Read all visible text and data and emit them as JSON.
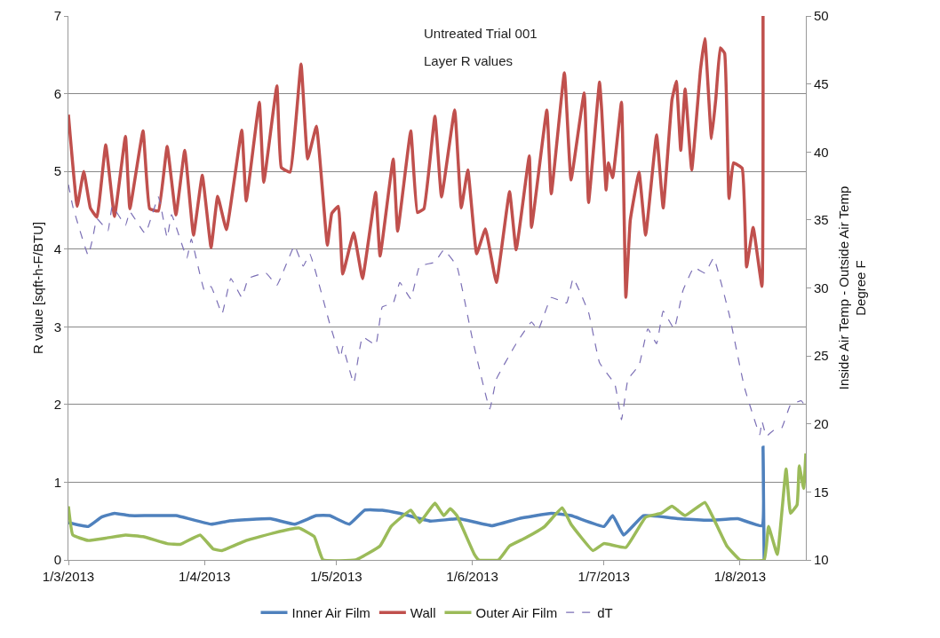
{
  "chart_data": {
    "type": "line",
    "title": "Untreated Trial 001",
    "subtitle": "Layer R values",
    "ylabel": "R value [sqft-h-F/BTU]",
    "y2label": "Inside Air Temp - Outside Air Temp\nDegree F",
    "xlim": [
      "2013-03-01",
      "2013-08-16"
    ],
    "xticks": [
      {
        "value": "2013-03-01",
        "label": "1/3/2013"
      },
      {
        "value": "2013-04-01",
        "label": "1/4/2013"
      },
      {
        "value": "2013-05-01",
        "label": "1/5/2013"
      },
      {
        "value": "2013-06-01",
        "label": "1/6/2013"
      },
      {
        "value": "2013-07-01",
        "label": "1/7/2013"
      },
      {
        "value": "2013-08-01",
        "label": "1/8/2013"
      }
    ],
    "ylim": [
      0,
      7
    ],
    "yticks": [
      0,
      1,
      2,
      3,
      4,
      5,
      6,
      7
    ],
    "y2lim": [
      10,
      50
    ],
    "y2ticks": [
      10,
      15,
      20,
      25,
      30,
      35,
      40,
      45,
      50
    ],
    "grid": "y",
    "legend": "bottom",
    "marker": "none",
    "series": [
      {
        "name": "Inner Air Film",
        "color": "#4f81bd",
        "x": [
          "2013-03-01T00:00",
          "2013-03-05T12:00",
          "2013-03-08T12:00",
          "2013-03-11T12:00",
          "2013-03-15T00:00",
          "2013-03-19T00:00",
          "2013-03-25T12:00",
          "2013-04-02T12:00",
          "2013-04-06T12:00",
          "2013-04-16T00:00",
          "2013-04-21T12:00",
          "2013-04-26T12:00",
          "2013-04-29T12:00",
          "2013-05-04T00:00",
          "2013-05-07T12:00",
          "2013-05-11T12:00",
          "2013-05-15T12:00",
          "2013-05-22T12:00",
          "2013-05-29T00:00",
          "2013-06-05T12:00",
          "2013-06-11T12:00",
          "2013-06-19T00:00",
          "2013-06-23T12:00",
          "2013-07-01T00:00",
          "2013-07-03T00:00",
          "2013-07-05T12:00",
          "2013-07-10T00:00",
          "2013-07-18T00:00",
          "2013-07-25T00:00",
          "2013-07-31T12:00",
          "2013-08-06T00:00",
          "2013-08-06T06:00",
          "2013-08-06T12:00"
        ],
        "values": [
          0.48,
          0.43,
          0.55,
          0.6,
          0.57,
          0.57,
          0.57,
          0.46,
          0.5,
          0.53,
          0.46,
          0.57,
          0.57,
          0.46,
          0.64,
          0.64,
          0.6,
          0.5,
          0.53,
          0.44,
          0.53,
          0.6,
          0.57,
          0.43,
          0.57,
          0.32,
          0.57,
          0.53,
          0.51,
          0.53,
          0.44,
          1.45,
          0.0
        ]
      },
      {
        "name": "Wall",
        "color": "#c0504d",
        "x": [
          "2013-03-01T00:00",
          "2013-03-03T00:00",
          "2013-03-04T12:00",
          "2013-03-06T00:00",
          "2013-03-07T12:00",
          "2013-03-09T12:00",
          "2013-03-11T12:00",
          "2013-03-14T00:00",
          "2013-03-15T00:00",
          "2013-03-18T00:00",
          "2013-03-19T12:00",
          "2013-03-21T12:00",
          "2013-03-23T12:00",
          "2013-03-25T12:00",
          "2013-03-27T12:00",
          "2013-03-29T12:00",
          "2013-03-31T12:00",
          "2013-04-02T12:00",
          "2013-04-04T00:00",
          "2013-04-06T00:00",
          "2013-04-09T12:00",
          "2013-04-10T12:00",
          "2013-04-13T12:00",
          "2013-04-14T12:00",
          "2013-04-17T12:00",
          "2013-04-18T12:00",
          "2013-04-20T12:00",
          "2013-04-23T00:00",
          "2013-04-24T12:00",
          "2013-04-26T12:00",
          "2013-04-29T00:00",
          "2013-04-30T00:00",
          "2013-05-01T12:00",
          "2013-05-02T12:00",
          "2013-05-05T00:00",
          "2013-05-07T00:00",
          "2013-05-10T00:00",
          "2013-05-11T00:00",
          "2013-05-14T00:00",
          "2013-05-15T00:00",
          "2013-05-18T00:00",
          "2013-05-19T12:00",
          "2013-05-21T00:00",
          "2013-05-23T12:00",
          "2013-05-25T00:00",
          "2013-05-28T00:00",
          "2013-05-29T12:00",
          "2013-05-31T00:00",
          "2013-06-02T00:00",
          "2013-06-04T00:00",
          "2013-06-06T12:00",
          "2013-06-09T12:00",
          "2013-06-11T00:00",
          "2013-06-14T00:00",
          "2013-06-14T12:00",
          "2013-06-18T00:00",
          "2013-06-19T00:00",
          "2013-06-22T00:00",
          "2013-06-23T12:00",
          "2013-06-26T12:00",
          "2013-06-27T12:00",
          "2013-06-30T00:00",
          "2013-06-30T12:00",
          "2013-07-01T12:00",
          "2013-07-02T00:00",
          "2013-07-03T00:00",
          "2013-07-05T00:00",
          "2013-07-06T00:00",
          "2013-07-07T00:00",
          "2013-07-09T00:00",
          "2013-07-10T12:00",
          "2013-07-13T00:00",
          "2013-07-14T12:00",
          "2013-07-16T12:00",
          "2013-07-17T12:00",
          "2013-07-18T12:00",
          "2013-07-19T12:00",
          "2013-07-21T00:00",
          "2013-07-23T00:00",
          "2013-07-24T00:00",
          "2013-07-25T12:00",
          "2013-07-26T12:00",
          "2013-07-27T12:00",
          "2013-07-28T12:00",
          "2013-07-29T12:00",
          "2013-07-30T12:00",
          "2013-08-01T12:00",
          "2013-08-02T12:00",
          "2013-08-04T00:00",
          "2013-08-06T00:00",
          "2013-08-06T06:00"
        ],
        "values": [
          5.73,
          4.55,
          5.0,
          4.53,
          4.41,
          5.34,
          4.42,
          5.45,
          4.52,
          5.52,
          4.52,
          4.49,
          5.32,
          4.44,
          5.27,
          4.18,
          4.95,
          4.02,
          4.68,
          4.25,
          5.53,
          4.62,
          5.89,
          4.86,
          6.1,
          5.05,
          4.99,
          6.38,
          5.16,
          5.58,
          4.05,
          4.46,
          4.55,
          3.68,
          4.21,
          3.62,
          4.73,
          3.91,
          5.16,
          4.23,
          5.52,
          4.47,
          4.52,
          5.71,
          4.67,
          5.79,
          4.53,
          5.02,
          3.94,
          4.26,
          3.57,
          4.74,
          3.99,
          5.2,
          4.28,
          5.79,
          4.71,
          6.27,
          4.89,
          6.01,
          4.6,
          6.15,
          5.78,
          4.76,
          5.11,
          4.92,
          5.89,
          3.38,
          4.37,
          4.99,
          4.18,
          5.47,
          4.53,
          5.92,
          6.16,
          5.27,
          6.06,
          5.02,
          6.31,
          6.71,
          5.42,
          5.94,
          6.59,
          6.52,
          4.65,
          5.11,
          5.04,
          3.77,
          4.28,
          3.52,
          7
        ]
      },
      {
        "name": "Outer Air Film",
        "color": "#9bbb59",
        "x": [
          "2013-03-01T00:00",
          "2013-03-02T00:00",
          "2013-03-05T12:00",
          "2013-03-09T12:00",
          "2013-03-14T00:00",
          "2013-03-18T00:00",
          "2013-03-23T12:00",
          "2013-03-26T12:00",
          "2013-03-31T00:00",
          "2013-04-03T00:00",
          "2013-04-05T00:00",
          "2013-04-10T12:00",
          "2013-04-17T00:00",
          "2013-04-22T12:00",
          "2013-04-26T00:00",
          "2013-04-28T00:00",
          "2013-05-05T12:00",
          "2013-05-11T00:00",
          "2013-05-13T12:00",
          "2013-05-18T00:00",
          "2013-05-20T00:00",
          "2013-05-23T12:00",
          "2013-05-25T12:00",
          "2013-05-27T00:00",
          "2013-05-28T12:00",
          "2013-06-01T12:00",
          "2013-06-02T12:00",
          "2013-06-07T00:00",
          "2013-06-09T12:00",
          "2013-06-13T00:00",
          "2013-06-17T12:00",
          "2013-06-21T12:00",
          "2013-06-23T12:00",
          "2013-06-28T12:00",
          "2013-07-01T00:00",
          "2013-07-06T00:00",
          "2013-07-10T12:00",
          "2013-07-14T00:00",
          "2013-07-16T12:00",
          "2013-07-19T12:00",
          "2013-07-24T00:00",
          "2013-07-26T00:00",
          "2013-07-29T00:00",
          "2013-08-01T00:00",
          "2013-08-06T12:00",
          "2013-08-07T12:00",
          "2013-08-09T12:00",
          "2013-08-11T12:00",
          "2013-08-12T12:00",
          "2013-08-14T00:00",
          "2013-08-14T12:00",
          "2013-08-15T12:00",
          "2013-08-16T00:00"
        ],
        "values": [
          0.69,
          0.32,
          0.25,
          0.28,
          0.32,
          0.3,
          0.21,
          0.2,
          0.32,
          0.14,
          0.12,
          0.25,
          0.35,
          0.41,
          0.3,
          0.0,
          0.0,
          0.18,
          0.43,
          0.64,
          0.48,
          0.73,
          0.57,
          0.66,
          0.57,
          0.07,
          0.0,
          0.0,
          0.18,
          0.28,
          0.43,
          0.67,
          0.46,
          0.12,
          0.21,
          0.16,
          0.55,
          0.6,
          0.69,
          0.57,
          0.74,
          0.53,
          0.18,
          0.0,
          0.0,
          0.43,
          0.07,
          1.17,
          0.6,
          0.71,
          1.21,
          0.92,
          1.37
        ]
      },
      {
        "name": "dT",
        "color": "#7b6fb5",
        "axis": "y2",
        "line_style": "dashed",
        "x": [
          "2013-03-01T00:00",
          "2013-03-02T00:00",
          "2013-03-05T12:00",
          "2013-03-06T12:00",
          "2013-03-07T12:00",
          "2013-03-10T00:00",
          "2013-03-11T00:00",
          "2013-03-14T00:00",
          "2013-03-15T00:00",
          "2013-03-18T12:00",
          "2013-03-21T12:00",
          "2013-03-23T12:00",
          "2013-03-24T12:00",
          "2013-03-28T00:00",
          "2013-03-29T00:00",
          "2013-04-01T00:00",
          "2013-04-02T12:00",
          "2013-04-05T00:00",
          "2013-04-07T00:00",
          "2013-04-09T12:00",
          "2013-04-11T00:00",
          "2013-04-15T00:00",
          "2013-04-17T12:00",
          "2013-04-21T12:00",
          "2013-04-23T12:00",
          "2013-04-25T00:00",
          "2013-04-29T12:00",
          "2013-05-02T00:00",
          "2013-05-02T12:00",
          "2013-05-05T00:00",
          "2013-05-07T00:00",
          "2013-05-10T00:00",
          "2013-05-11T12:00",
          "2013-05-14T00:00",
          "2013-05-15T12:00",
          "2013-05-18T00:00",
          "2013-05-20T00:00",
          "2013-05-23T12:00",
          "2013-05-25T12:00",
          "2013-05-28T12:00",
          "2013-06-01T00:00",
          "2013-06-05T00:00",
          "2013-06-06T12:00",
          "2013-06-11T00:00",
          "2013-06-14T12:00",
          "2013-06-16T00:00",
          "2013-06-19T00:00",
          "2013-06-22T12:00",
          "2013-06-24T00:00",
          "2013-06-27T12:00",
          "2013-06-30T00:00",
          "2013-07-03T12:00",
          "2013-07-05T00:00",
          "2013-07-06T12:00",
          "2013-07-09T00:00",
          "2013-07-11T00:00",
          "2013-07-13T00:00",
          "2013-07-14T12:00",
          "2013-07-17T00:00",
          "2013-07-19T00:00",
          "2013-07-21T12:00",
          "2013-07-24T00:00",
          "2013-07-26T00:00",
          "2013-07-29T12:00",
          "2013-08-02T00:00",
          "2013-08-05T12:00",
          "2013-08-06T00:00",
          "2013-08-07T00:00",
          "2013-08-08T12:00",
          "2013-08-10T12:00",
          "2013-08-12T12:00",
          "2013-08-15T00:00",
          "2013-08-16T00:00"
        ],
        "values": [
          37.6,
          36.0,
          32.4,
          33.6,
          35.1,
          34.2,
          36.0,
          34.6,
          35.6,
          34.0,
          36.7,
          33.7,
          35.4,
          32.2,
          33.6,
          29.8,
          30.1,
          28.1,
          30.7,
          29.3,
          30.7,
          31.1,
          30.2,
          33.1,
          31.6,
          32.5,
          27.4,
          24.9,
          25.7,
          23.0,
          26.4,
          25.8,
          28.6,
          28.9,
          30.4,
          29.2,
          31.6,
          31.9,
          32.8,
          31.6,
          26.3,
          21.1,
          23.3,
          25.9,
          27.5,
          26.9,
          29.3,
          28.9,
          30.7,
          28.2,
          24.5,
          22.9,
          20.3,
          23.3,
          24.3,
          27.0,
          25.9,
          28.3,
          27.0,
          29.8,
          31.5,
          31.1,
          32.2,
          28.1,
          22.7,
          19.2,
          20.2,
          19.1,
          19.5,
          19.7,
          21.4,
          21.7,
          21.2
        ]
      }
    ]
  }
}
